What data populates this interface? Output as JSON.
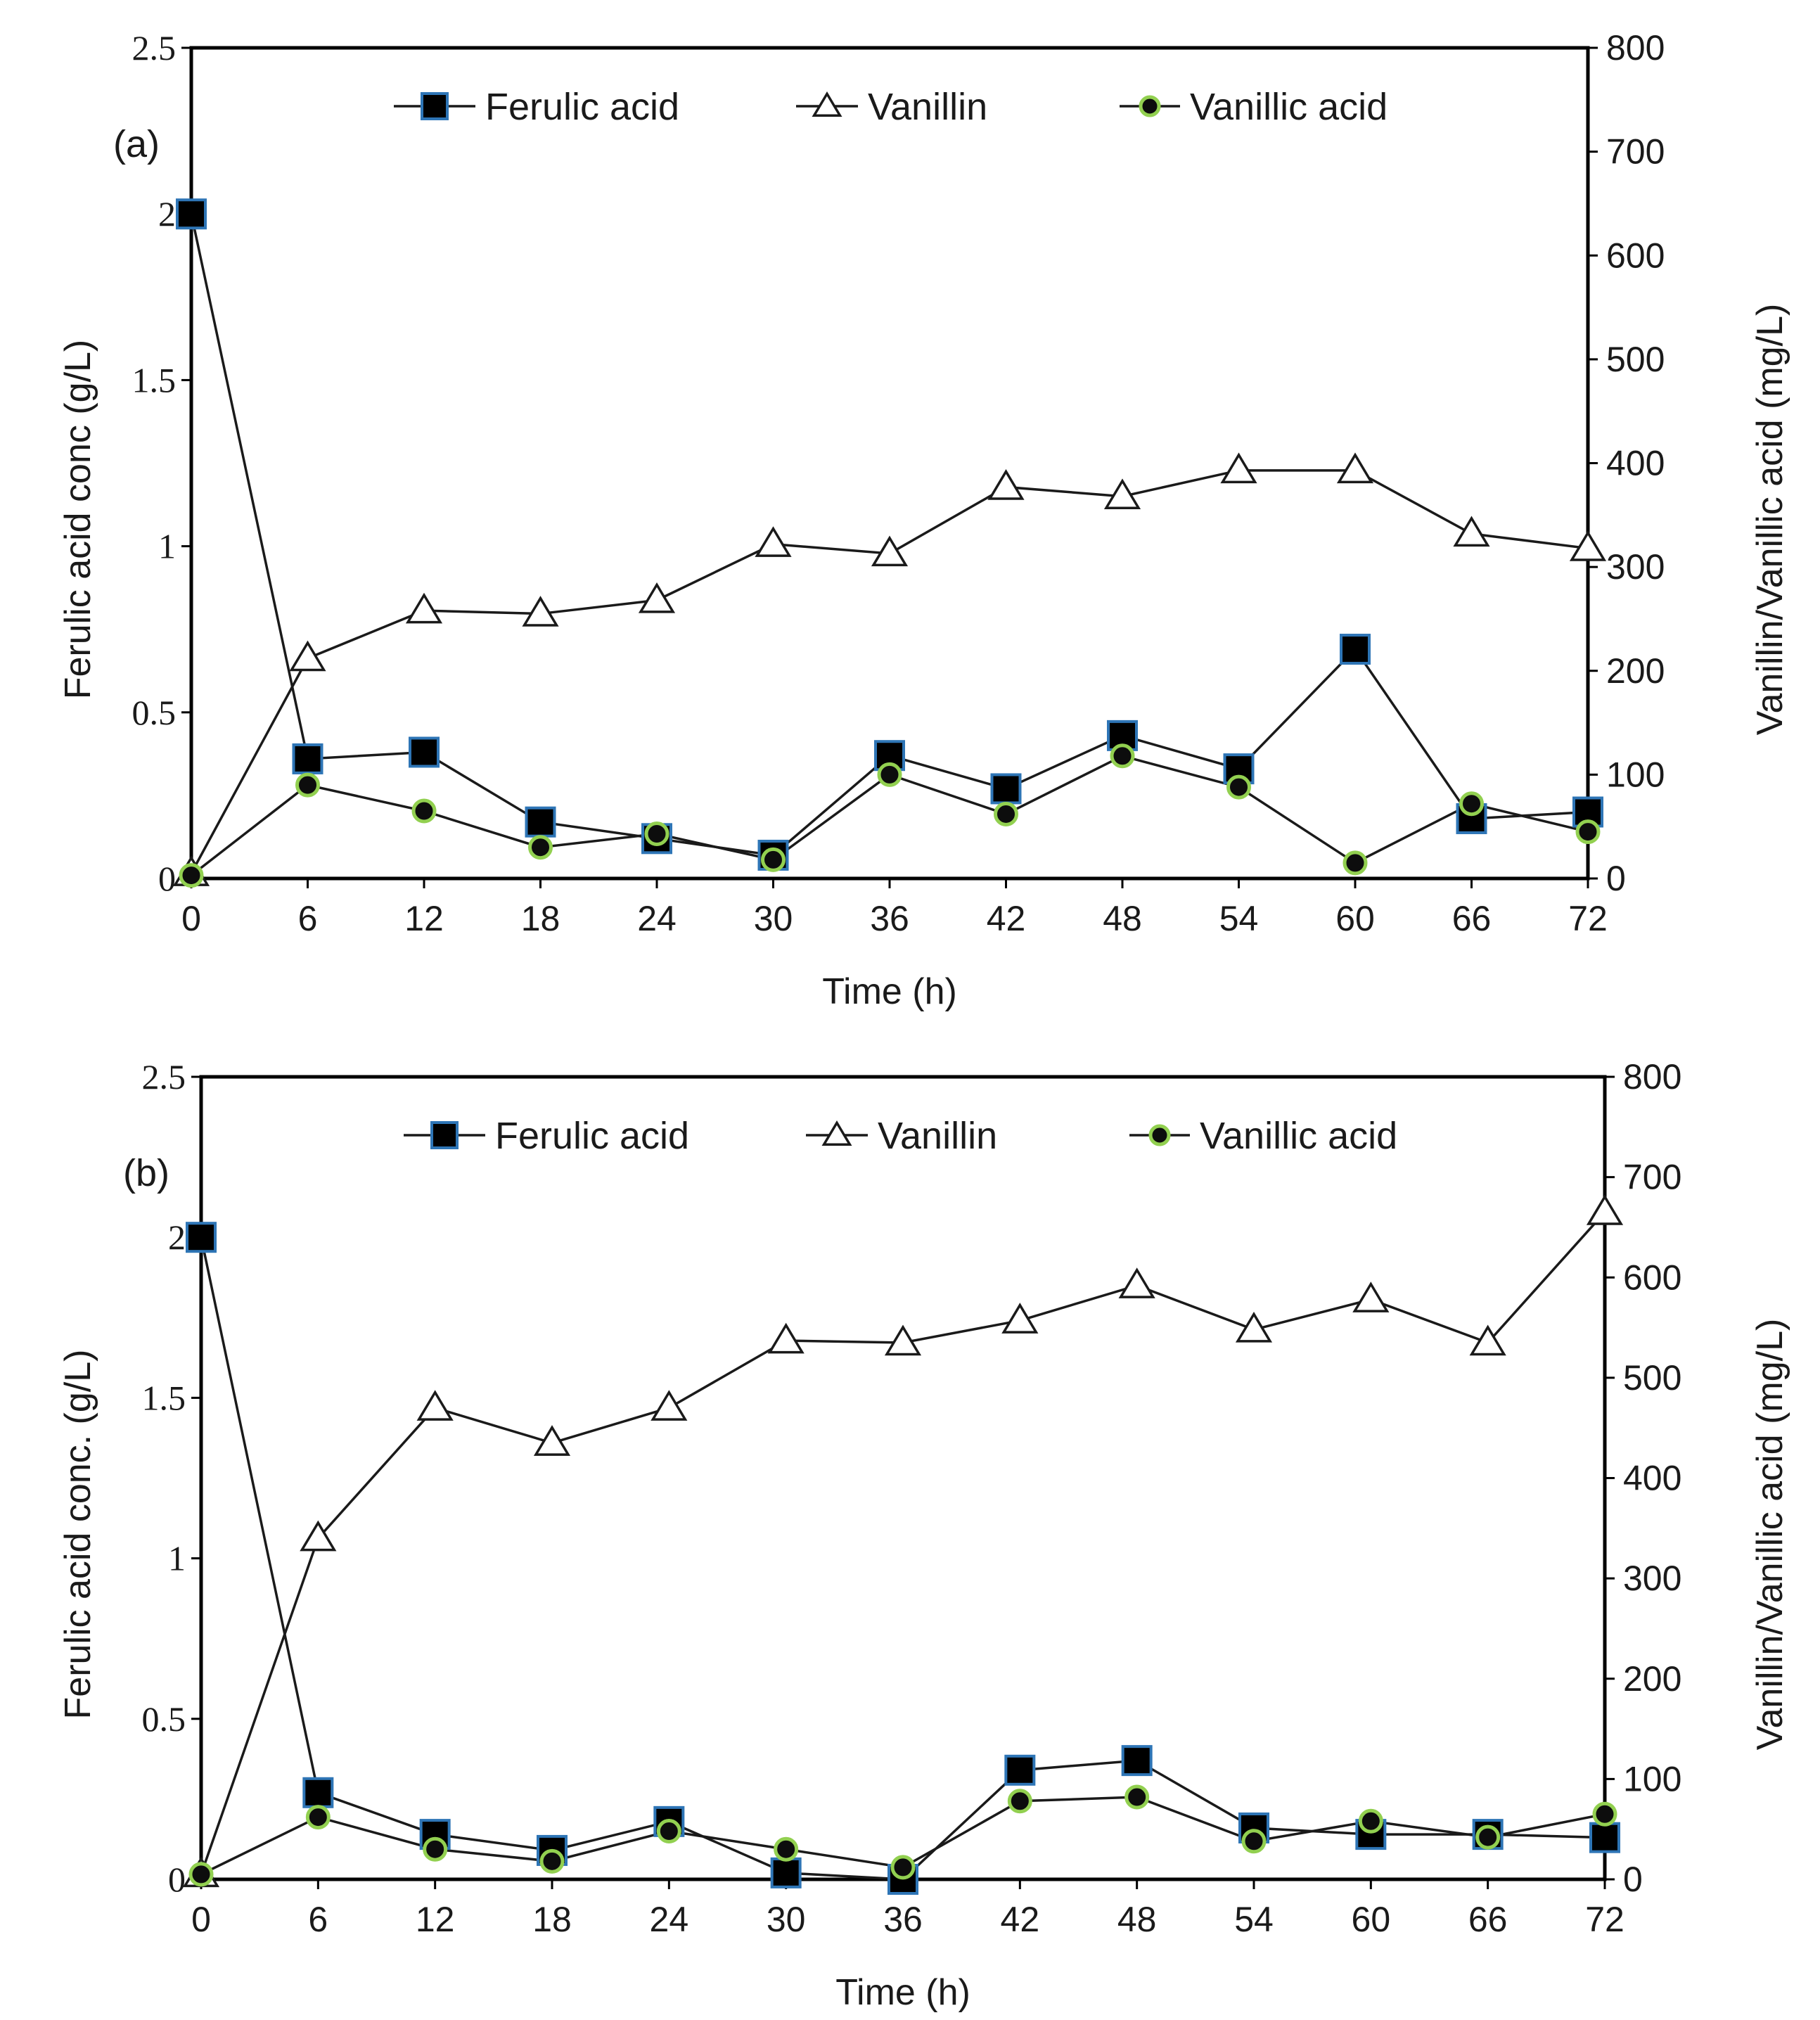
{
  "chart_data": [
    {
      "type": "line",
      "panel_label": "(a)",
      "x": [
        0,
        6,
        12,
        18,
        24,
        30,
        36,
        42,
        48,
        54,
        60,
        66,
        72
      ],
      "x_tick_labels": [
        "0",
        "6",
        "12",
        "18",
        "24",
        "30",
        "36",
        "42",
        "48",
        "54",
        "60",
        "66",
        "72"
      ],
      "xlabel": "Time (h)",
      "ylabel_left": "Ferulic  acid conc (g/L)",
      "ylabel_right": "Vanillin/Vanillic  acid  (mg/L)",
      "ylim_left": [
        0,
        2.5
      ],
      "ylim_right": [
        0,
        800
      ],
      "y_left_ticks": [
        "0",
        "0.5",
        "1",
        "1.5",
        "2",
        "2.5"
      ],
      "y_right_ticks": [
        "0",
        "100",
        "200",
        "300",
        "400",
        "500",
        "600",
        "700",
        "800"
      ],
      "legend_position": "top-center",
      "series": [
        {
          "name": "Ferulic acid",
          "axis": "left",
          "marker": "square",
          "values": [
            2.0,
            0.36,
            0.38,
            0.17,
            0.12,
            0.07,
            0.37,
            0.27,
            0.43,
            0.33,
            0.69,
            0.18,
            0.2
          ]
        },
        {
          "name": "Vanillin",
          "axis": "right",
          "marker": "triangle",
          "values": [
            5,
            212,
            258,
            255,
            268,
            322,
            313,
            377,
            368,
            393,
            393,
            332,
            318
          ]
        },
        {
          "name": "Vanillic acid",
          "axis": "right",
          "marker": "circle",
          "values": [
            3,
            90,
            65,
            30,
            43,
            18,
            100,
            62,
            118,
            88,
            15,
            72,
            45
          ]
        }
      ]
    },
    {
      "type": "line",
      "panel_label": "(b)",
      "x": [
        0,
        6,
        12,
        18,
        24,
        30,
        36,
        42,
        48,
        54,
        60,
        66,
        72
      ],
      "x_tick_labels": [
        "0",
        "6",
        "12",
        "18",
        "24",
        "30",
        "36",
        "42",
        "48",
        "54",
        "60",
        "66",
        "72"
      ],
      "xlabel": "Time (h)",
      "ylabel_left": "Ferulic  acid conc. (g/L)",
      "ylabel_right": "Vanillin/Vanillic  acid  (mg/L)",
      "ylim_left": [
        0,
        2.5
      ],
      "ylim_right": [
        0,
        800
      ],
      "y_left_ticks": [
        "0",
        "0.5",
        "1",
        "1.5",
        "2",
        "2.5"
      ],
      "y_right_ticks": [
        "0",
        "100",
        "200",
        "300",
        "400",
        "500",
        "600",
        "700",
        "800"
      ],
      "legend_position": "top-center",
      "series": [
        {
          "name": "Ferulic acid",
          "axis": "left",
          "marker": "square",
          "values": [
            2.0,
            0.27,
            0.14,
            0.09,
            0.18,
            0.02,
            0.0,
            0.34,
            0.37,
            0.16,
            0.14,
            0.14,
            0.13
          ]
        },
        {
          "name": "Vanillin",
          "axis": "right",
          "marker": "triangle",
          "values": [
            5,
            340,
            470,
            435,
            470,
            537,
            535,
            557,
            592,
            548,
            578,
            535,
            665
          ]
        },
        {
          "name": "Vanillic acid",
          "axis": "right",
          "marker": "circle",
          "values": [
            5,
            62,
            30,
            18,
            48,
            30,
            12,
            78,
            82,
            38,
            58,
            42,
            65
          ]
        }
      ]
    }
  ],
  "colors": {
    "line": "#1a1a1a",
    "square_fill": "#000000",
    "square_edge": "#2e75b6",
    "triangle_fill": "#ffffff",
    "circle_fill": "#0d0d0d",
    "circle_edge": "#92d050",
    "text": "#1a1a1a"
  }
}
